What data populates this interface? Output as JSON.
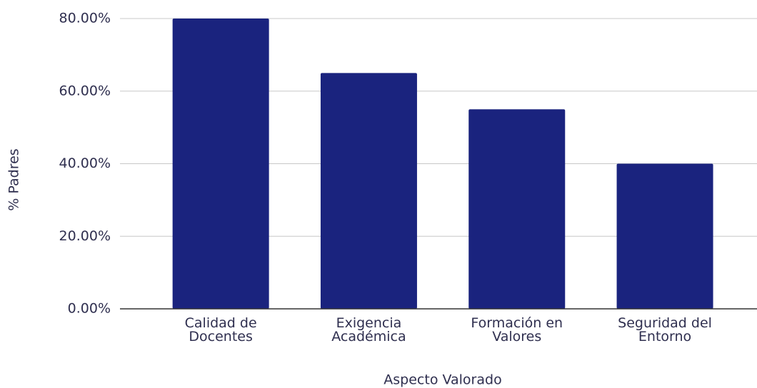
{
  "chart_data": {
    "type": "bar",
    "xlabel": "Aspecto Valorado",
    "ylabel": "% Padres",
    "categories": [
      "Calidad de Docentes",
      "Exigencia Académica",
      "Formación en Valores",
      "Seguridad del Entorno"
    ],
    "values": [
      80,
      65,
      55,
      40
    ],
    "color": "#1a237e",
    "ylim": [
      0,
      80
    ],
    "yticks": [
      {
        "value": 0,
        "label": "0.00%"
      },
      {
        "value": 20,
        "label": "20.00%"
      },
      {
        "value": 40,
        "label": "40.00%"
      },
      {
        "value": 60,
        "label": "60.00%"
      },
      {
        "value": 80,
        "label": "80.00%"
      }
    ],
    "grid": true
  }
}
